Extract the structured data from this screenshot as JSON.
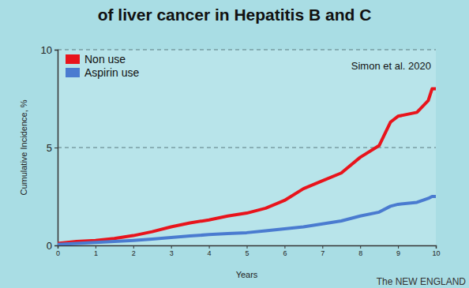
{
  "chart_data": {
    "type": "line",
    "title": "of liver cancer in Hepatitis B and C",
    "x_label": "Years",
    "y_label": "Cumulative Incidence, %",
    "annotations": [
      "Simon et al. 2020",
      "The NEW ENGLAND"
    ],
    "x": [
      0,
      0.5,
      1,
      1.5,
      2,
      2.5,
      3,
      3.5,
      4,
      4.5,
      5,
      5.5,
      6,
      6.5,
      7,
      7.5,
      8,
      8.5,
      8.8,
      9,
      9.5,
      9.8,
      9.9,
      10
    ],
    "series": [
      {
        "name": "Non use",
        "color": "#e8141c",
        "values": [
          0.1,
          0.2,
          0.25,
          0.35,
          0.5,
          0.7,
          0.95,
          1.15,
          1.3,
          1.5,
          1.65,
          1.9,
          2.3,
          2.9,
          3.3,
          3.7,
          4.5,
          5.1,
          6.3,
          6.6,
          6.8,
          7.4,
          8.0,
          8.0
        ]
      },
      {
        "name": "Aspirin use",
        "color": "#4a7bd0",
        "values": [
          0.05,
          0.1,
          0.15,
          0.2,
          0.25,
          0.32,
          0.4,
          0.48,
          0.55,
          0.6,
          0.65,
          0.75,
          0.85,
          0.95,
          1.1,
          1.25,
          1.5,
          1.7,
          2.0,
          2.1,
          2.2,
          2.4,
          2.5,
          2.5
        ]
      }
    ],
    "xlim": [
      0,
      10
    ],
    "xticks": [
      0,
      1,
      2,
      3,
      4,
      5,
      6,
      7,
      8,
      9,
      10
    ],
    "ylim": [
      0,
      10
    ],
    "yticks": [
      0,
      5,
      10
    ],
    "grid": true,
    "legend": "top-left"
  }
}
